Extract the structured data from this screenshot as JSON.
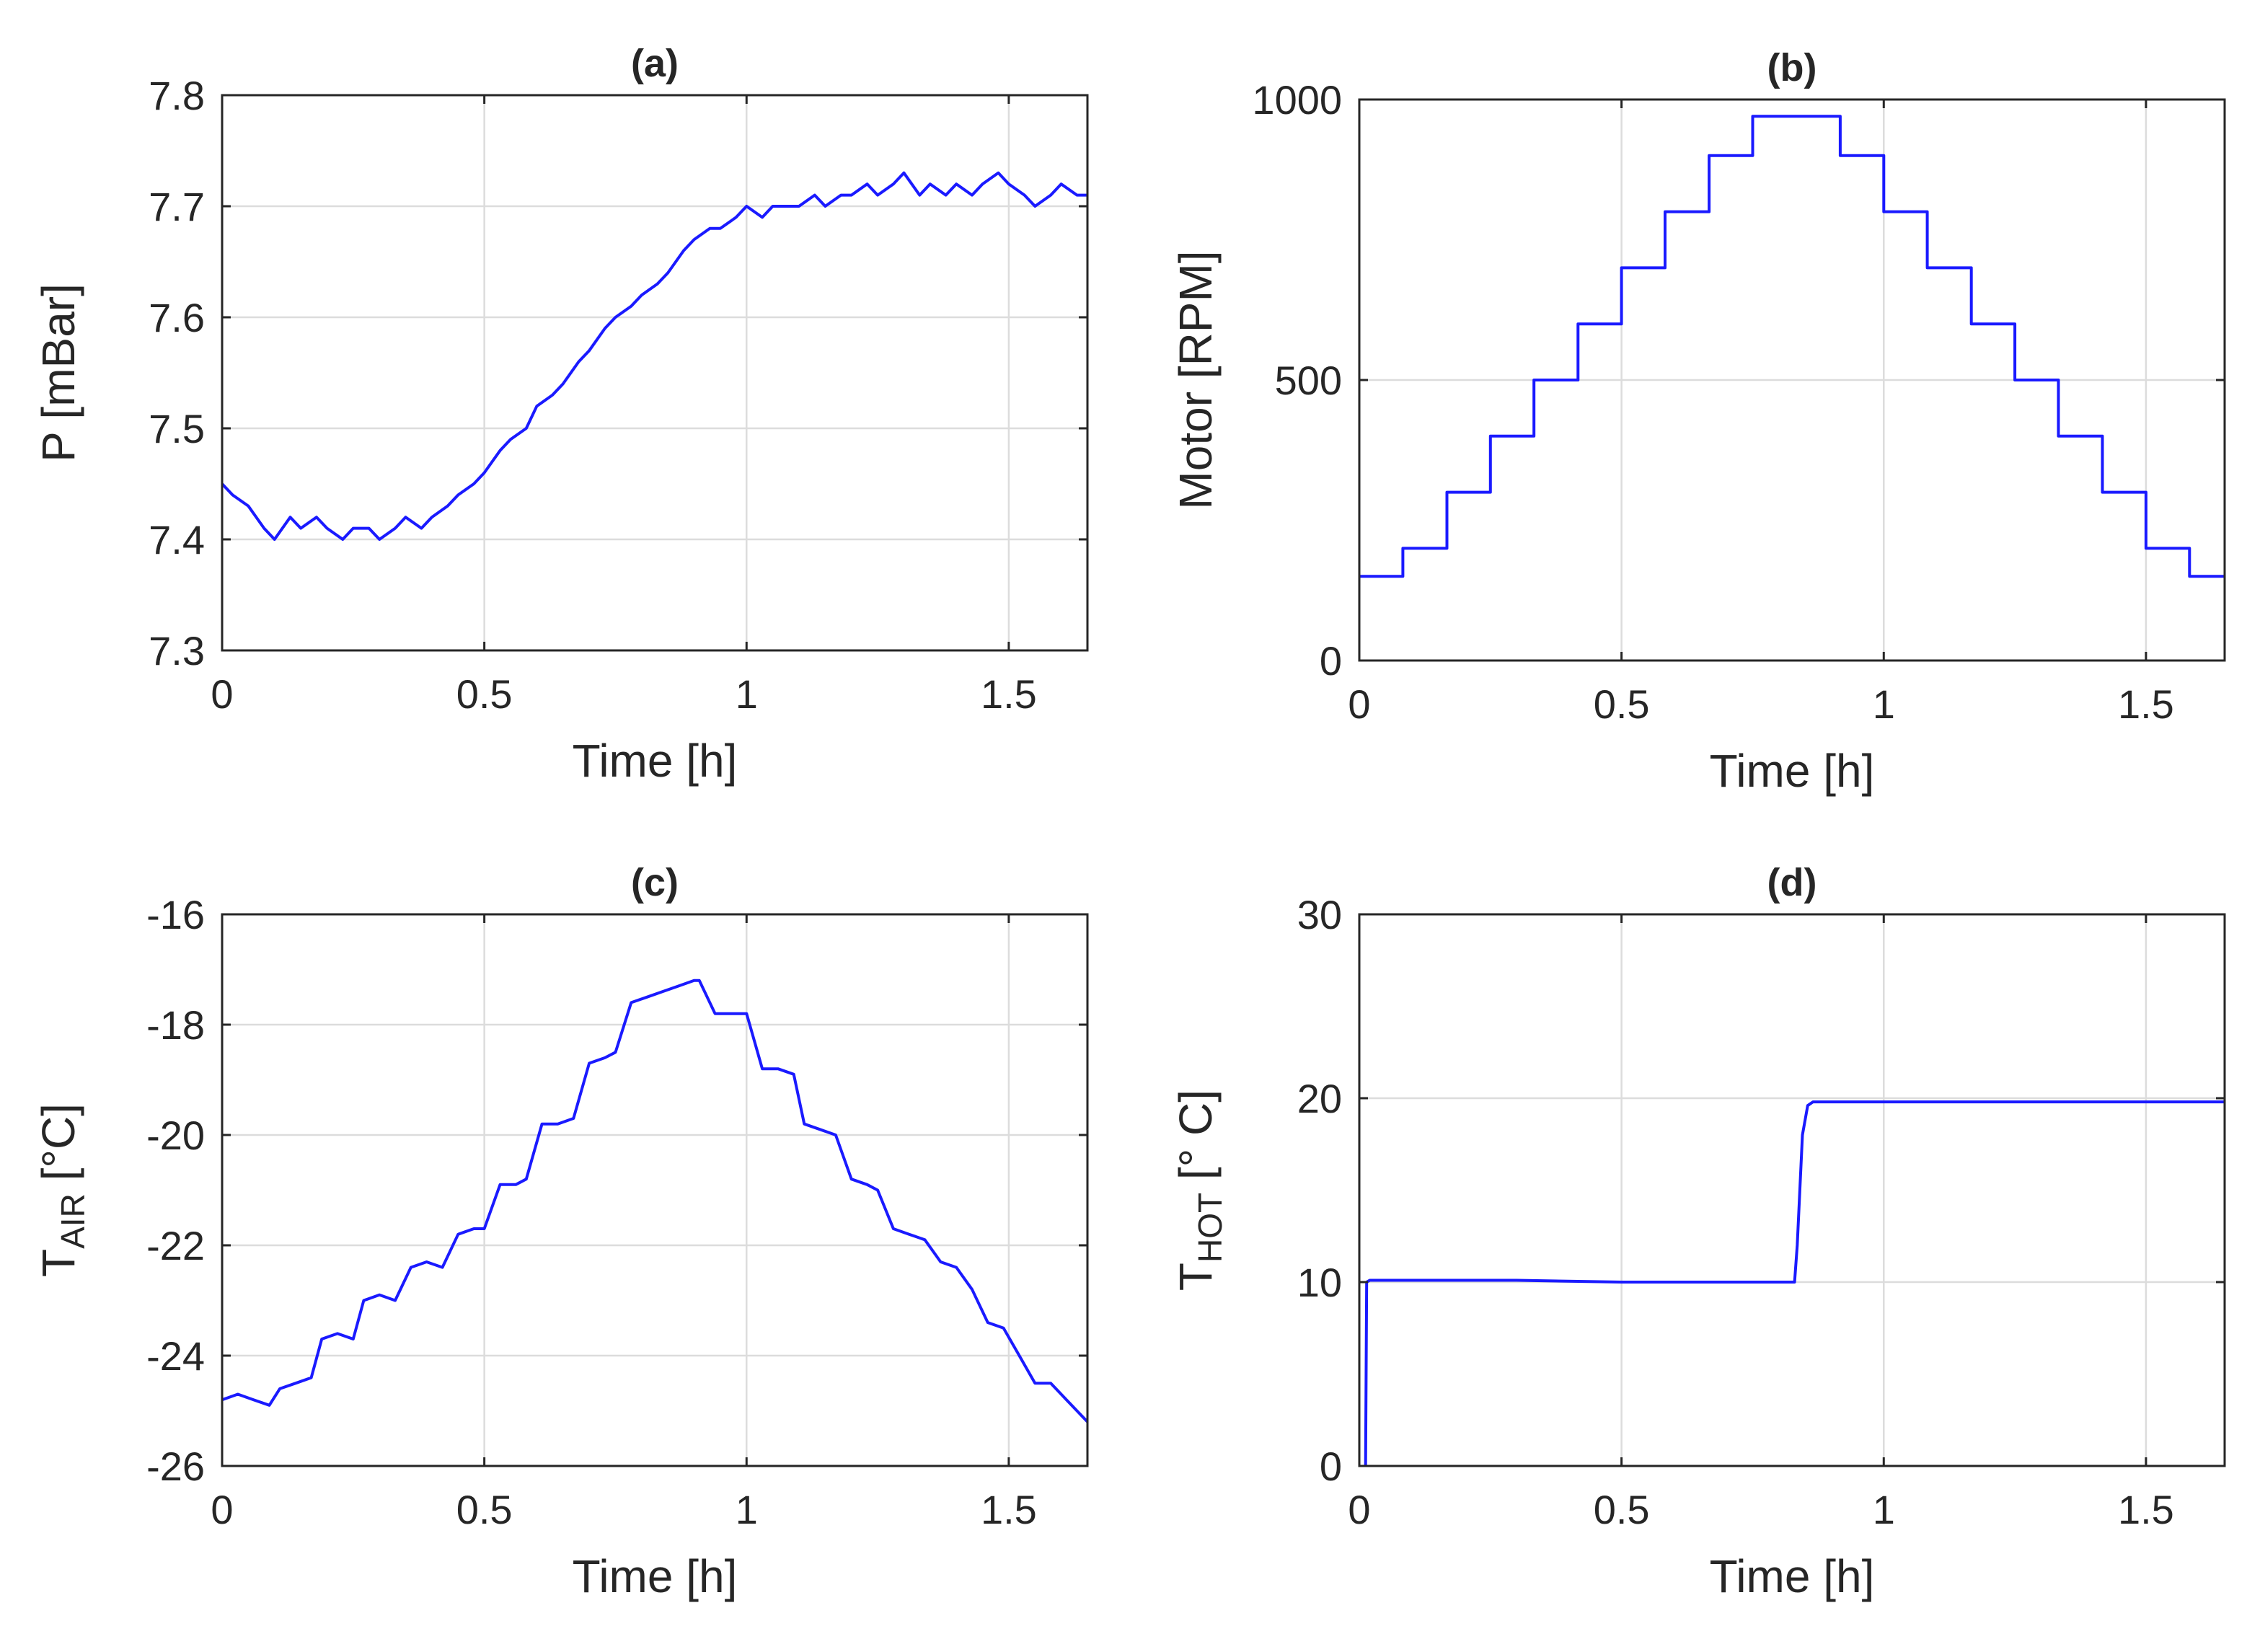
{
  "chart_data": [
    {
      "id": "a",
      "type": "line",
      "title": "(a)",
      "xlabel": "Time [h]",
      "ylabel_main": "P [mBar]",
      "ylabel_sub": "",
      "ylabel_tail": "",
      "xlim": [
        0,
        1.65
      ],
      "ylim": [
        7.3,
        7.8
      ],
      "xticks": [
        0,
        0.5,
        1,
        1.5
      ],
      "xtick_labels": [
        "0",
        "0.5",
        "1",
        "1.5"
      ],
      "yticks": [
        7.3,
        7.4,
        7.5,
        7.6,
        7.7,
        7.8
      ],
      "ytick_labels": [
        "7.3",
        "7.4",
        "7.5",
        "7.6",
        "7.7",
        "7.8"
      ],
      "grid": true,
      "series": [
        {
          "name": "P",
          "color": "#1a1aff",
          "x": [
            0,
            0.02,
            0.05,
            0.08,
            0.1,
            0.13,
            0.15,
            0.18,
            0.2,
            0.23,
            0.25,
            0.28,
            0.3,
            0.33,
            0.35,
            0.38,
            0.4,
            0.43,
            0.45,
            0.48,
            0.5,
            0.53,
            0.55,
            0.58,
            0.6,
            0.63,
            0.65,
            0.68,
            0.7,
            0.73,
            0.75,
            0.78,
            0.8,
            0.83,
            0.85,
            0.88,
            0.9,
            0.93,
            0.95,
            0.98,
            1.0,
            1.03,
            1.05,
            1.08,
            1.1,
            1.13,
            1.15,
            1.18,
            1.2,
            1.23,
            1.25,
            1.28,
            1.3,
            1.33,
            1.35,
            1.38,
            1.4,
            1.43,
            1.45,
            1.48,
            1.5,
            1.53,
            1.55,
            1.58,
            1.6,
            1.63,
            1.65
          ],
          "y": [
            7.45,
            7.44,
            7.43,
            7.41,
            7.4,
            7.42,
            7.41,
            7.42,
            7.41,
            7.4,
            7.41,
            7.41,
            7.4,
            7.41,
            7.42,
            7.41,
            7.42,
            7.43,
            7.44,
            7.45,
            7.46,
            7.48,
            7.49,
            7.5,
            7.52,
            7.53,
            7.54,
            7.56,
            7.57,
            7.59,
            7.6,
            7.61,
            7.62,
            7.63,
            7.64,
            7.66,
            7.67,
            7.68,
            7.68,
            7.69,
            7.7,
            7.69,
            7.7,
            7.7,
            7.7,
            7.71,
            7.7,
            7.71,
            7.71,
            7.72,
            7.71,
            7.72,
            7.73,
            7.71,
            7.72,
            7.71,
            7.72,
            7.71,
            7.72,
            7.73,
            7.72,
            7.71,
            7.7,
            7.71,
            7.72,
            7.71,
            7.71
          ]
        }
      ]
    },
    {
      "id": "b",
      "type": "line",
      "title": "(b)",
      "xlabel": "Time [h]",
      "ylabel_main": "Motor [RPM]",
      "ylabel_sub": "",
      "ylabel_tail": "",
      "xlim": [
        0,
        1.65
      ],
      "ylim": [
        0,
        1000
      ],
      "xticks": [
        0,
        0.5,
        1,
        1.5
      ],
      "xtick_labels": [
        "0",
        "0.5",
        "1",
        "1.5"
      ],
      "yticks": [
        0,
        500,
        1000
      ],
      "ytick_labels": [
        "0",
        "500",
        "1000"
      ],
      "grid": true,
      "series": [
        {
          "name": "Motor",
          "color": "#1a1aff",
          "x": [
            0,
            0.083,
            0.083,
            0.167,
            0.167,
            0.25,
            0.25,
            0.333,
            0.333,
            0.417,
            0.417,
            0.5,
            0.5,
            0.583,
            0.583,
            0.667,
            0.667,
            0.75,
            0.75,
            0.917,
            0.917,
            1.0,
            1.0,
            1.083,
            1.083,
            1.167,
            1.167,
            1.25,
            1.25,
            1.333,
            1.333,
            1.417,
            1.417,
            1.5,
            1.5,
            1.583,
            1.583,
            1.65
          ],
          "y": [
            150,
            150,
            200,
            200,
            300,
            300,
            400,
            400,
            500,
            500,
            600,
            600,
            700,
            700,
            800,
            800,
            900,
            900,
            970,
            970,
            900,
            900,
            800,
            800,
            700,
            700,
            600,
            600,
            500,
            500,
            400,
            400,
            300,
            300,
            200,
            200,
            150,
            150
          ]
        }
      ]
    },
    {
      "id": "c",
      "type": "line",
      "title": "(c)",
      "xlabel": "Time [h]",
      "ylabel_main": "T",
      "ylabel_sub": "AIR",
      "ylabel_tail": " [°C]",
      "xlim": [
        0,
        1.65
      ],
      "ylim": [
        -26,
        -16
      ],
      "xticks": [
        0,
        0.5,
        1,
        1.5
      ],
      "xtick_labels": [
        "0",
        "0.5",
        "1",
        "1.5"
      ],
      "yticks": [
        -26,
        -24,
        -22,
        -20,
        -18,
        -16
      ],
      "ytick_labels": [
        "-26",
        "-24",
        "-22",
        "-20",
        "-18",
        "-16"
      ],
      "grid": true,
      "series": [
        {
          "name": "T_AIR",
          "color": "#1a1aff",
          "x": [
            0,
            0.03,
            0.06,
            0.09,
            0.11,
            0.14,
            0.17,
            0.19,
            0.22,
            0.25,
            0.27,
            0.3,
            0.33,
            0.36,
            0.39,
            0.42,
            0.45,
            0.48,
            0.5,
            0.53,
            0.56,
            0.58,
            0.61,
            0.64,
            0.67,
            0.7,
            0.73,
            0.75,
            0.78,
            0.81,
            0.84,
            0.87,
            0.9,
            0.91,
            0.94,
            0.97,
            1.0,
            1.03,
            1.06,
            1.09,
            1.11,
            1.14,
            1.17,
            1.2,
            1.23,
            1.25,
            1.28,
            1.31,
            1.34,
            1.37,
            1.4,
            1.43,
            1.46,
            1.49,
            1.52,
            1.55,
            1.58,
            1.61,
            1.65
          ],
          "y": [
            -24.8,
            -24.7,
            -24.8,
            -24.9,
            -24.6,
            -24.5,
            -24.4,
            -23.7,
            -23.6,
            -23.7,
            -23.0,
            -22.9,
            -23.0,
            -22.4,
            -22.3,
            -22.4,
            -21.8,
            -21.7,
            -21.7,
            -20.9,
            -20.9,
            -20.8,
            -19.8,
            -19.8,
            -19.7,
            -18.7,
            -18.6,
            -18.5,
            -17.6,
            -17.5,
            -17.4,
            -17.3,
            -17.2,
            -17.2,
            -17.8,
            -17.8,
            -17.8,
            -18.8,
            -18.8,
            -18.9,
            -19.8,
            -19.9,
            -20.0,
            -20.8,
            -20.9,
            -21.0,
            -21.7,
            -21.8,
            -21.9,
            -22.3,
            -22.4,
            -22.8,
            -23.4,
            -23.5,
            -24.0,
            -24.5,
            -24.5,
            -24.8,
            -25.2
          ]
        }
      ]
    },
    {
      "id": "d",
      "type": "line",
      "title": "(d)",
      "xlabel": "Time [h]",
      "ylabel_main": "T",
      "ylabel_sub": "HOT",
      "ylabel_tail": " [° C]",
      "xlim": [
        0,
        1.65
      ],
      "ylim": [
        0,
        30
      ],
      "xticks": [
        0,
        0.5,
        1,
        1.5
      ],
      "xtick_labels": [
        "0",
        "0.5",
        "1",
        "1.5"
      ],
      "yticks": [
        0,
        10,
        20,
        30
      ],
      "ytick_labels": [
        "0",
        "10",
        "20",
        "30"
      ],
      "grid": true,
      "series": [
        {
          "name": "T_HOT",
          "color": "#1a1aff",
          "x": [
            0.012,
            0.014,
            0.02,
            0.1,
            0.3,
            0.5,
            0.7,
            0.83,
            0.835,
            0.845,
            0.855,
            0.865,
            0.9,
            1.1,
            1.3,
            1.5,
            1.65
          ],
          "y": [
            0,
            10.0,
            10.1,
            10.1,
            10.1,
            10.0,
            10.0,
            10.0,
            12.0,
            18.0,
            19.6,
            19.8,
            19.8,
            19.8,
            19.8,
            19.8,
            19.8
          ]
        }
      ]
    }
  ]
}
